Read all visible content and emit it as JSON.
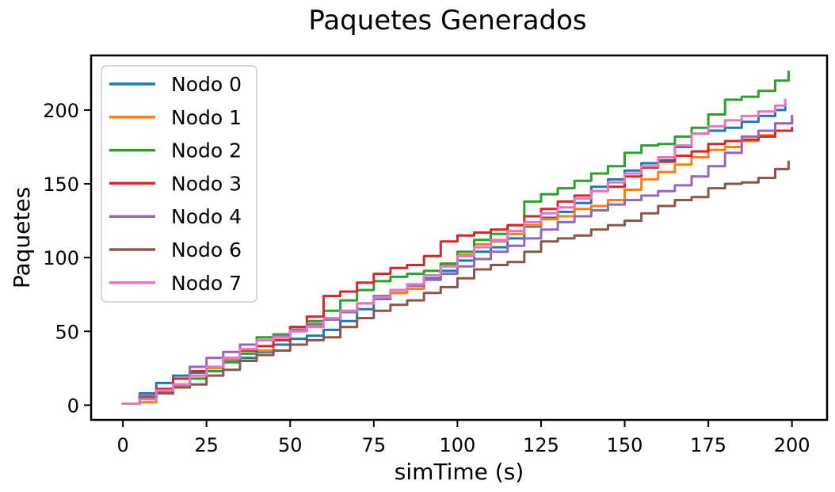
{
  "chart_data": {
    "type": "line",
    "title": "Paquetes Generados",
    "xlabel": "simTime (s)",
    "ylabel": "Paquetes",
    "xlim": [
      -9.5,
      210.5
    ],
    "ylim": [
      -10,
      237
    ],
    "xticks": [
      0,
      25,
      50,
      75,
      100,
      125,
      150,
      175,
      200
    ],
    "yticks": [
      0,
      50,
      100,
      150,
      200
    ],
    "grid": false,
    "legend_position": "upper-left",
    "series": [
      {
        "name": "Nodo 0",
        "color": "#1f77b4",
        "x": [
          0,
          5,
          10,
          15,
          20,
          25,
          30,
          35,
          40,
          45,
          50,
          55,
          60,
          65,
          70,
          75,
          80,
          85,
          90,
          95,
          100,
          105,
          110,
          115,
          120,
          125,
          130,
          135,
          140,
          145,
          150,
          155,
          160,
          165,
          170,
          175,
          180,
          185,
          190,
          195,
          198
        ],
        "y": [
          1,
          8,
          15,
          20,
          22,
          26,
          30,
          32,
          36,
          41,
          45,
          47,
          51,
          57,
          65,
          72,
          76,
          79,
          86,
          91,
          98,
          104,
          107,
          113,
          121,
          127,
          131,
          137,
          148,
          153,
          159,
          164,
          166,
          175,
          184,
          186,
          188,
          192,
          196,
          200,
          205
        ]
      },
      {
        "name": "Nodo 1",
        "color": "#ff7f0e",
        "x": [
          0,
          5,
          10,
          15,
          20,
          25,
          30,
          35,
          40,
          45,
          50,
          55,
          60,
          65,
          70,
          75,
          80,
          85,
          90,
          95,
          100,
          105,
          110,
          115,
          120,
          125,
          130,
          135,
          140,
          145,
          150,
          155,
          160,
          165,
          170,
          175,
          180,
          185,
          190,
          195,
          200
        ],
        "y": [
          1,
          2,
          9,
          13,
          20,
          25,
          31,
          35,
          37,
          44,
          51,
          54,
          58,
          63,
          69,
          74,
          76,
          79,
          85,
          95,
          102,
          109,
          111,
          116,
          122,
          126,
          128,
          133,
          135,
          139,
          146,
          153,
          158,
          163,
          168,
          173,
          175,
          179,
          183,
          191,
          196
        ]
      },
      {
        "name": "Nodo 2",
        "color": "#2ca02c",
        "x": [
          0,
          5,
          10,
          15,
          20,
          25,
          30,
          35,
          40,
          45,
          50,
          55,
          60,
          65,
          70,
          75,
          80,
          85,
          90,
          95,
          100,
          105,
          110,
          115,
          120,
          125,
          130,
          135,
          140,
          145,
          150,
          155,
          160,
          165,
          170,
          175,
          180,
          185,
          190,
          195,
          199
        ],
        "y": [
          1,
          6,
          9,
          12,
          18,
          23,
          29,
          35,
          46,
          48,
          53,
          57,
          64,
          71,
          78,
          84,
          87,
          89,
          91,
          96,
          104,
          112,
          116,
          122,
          138,
          143,
          147,
          152,
          157,
          162,
          171,
          176,
          177,
          182,
          188,
          197,
          207,
          209,
          213,
          220,
          226
        ]
      },
      {
        "name": "Nodo 3",
        "color": "#d62728",
        "x": [
          0,
          5,
          10,
          15,
          20,
          25,
          30,
          35,
          40,
          45,
          50,
          55,
          60,
          65,
          70,
          75,
          80,
          85,
          90,
          95,
          100,
          105,
          110,
          115,
          120,
          125,
          130,
          135,
          140,
          145,
          150,
          155,
          160,
          165,
          170,
          175,
          180,
          185,
          190,
          195,
          200
        ],
        "y": [
          1,
          5,
          11,
          18,
          23,
          26,
          32,
          37,
          40,
          44,
          53,
          60,
          74,
          77,
          83,
          89,
          93,
          95,
          101,
          111,
          115,
          117,
          119,
          122,
          128,
          133,
          138,
          142,
          145,
          148,
          155,
          161,
          165,
          169,
          172,
          177,
          179,
          180,
          182,
          186,
          188
        ]
      },
      {
        "name": "Nodo 4",
        "color": "#9467bd",
        "x": [
          0,
          5,
          10,
          15,
          20,
          25,
          30,
          35,
          40,
          45,
          50,
          55,
          60,
          65,
          70,
          75,
          80,
          85,
          90,
          95,
          100,
          105,
          110,
          115,
          120,
          125,
          130,
          135,
          140,
          145,
          150,
          155,
          160,
          165,
          170,
          175,
          180,
          185,
          190,
          195,
          200
        ],
        "y": [
          1,
          7,
          10,
          14,
          26,
          32,
          36,
          41,
          44,
          47,
          51,
          55,
          58,
          63,
          69,
          74,
          78,
          81,
          85,
          89,
          94,
          99,
          104,
          108,
          113,
          119,
          124,
          128,
          132,
          136,
          139,
          142,
          145,
          149,
          155,
          162,
          171,
          182,
          186,
          191,
          196
        ]
      },
      {
        "name": "Nodo 6",
        "color": "#8c564b",
        "x": [
          0,
          5,
          10,
          15,
          20,
          25,
          30,
          35,
          40,
          45,
          50,
          55,
          60,
          65,
          70,
          75,
          80,
          85,
          90,
          95,
          100,
          105,
          110,
          115,
          120,
          125,
          130,
          135,
          140,
          145,
          150,
          155,
          160,
          165,
          170,
          175,
          180,
          185,
          190,
          195,
          199
        ],
        "y": [
          1,
          5,
          8,
          12,
          14,
          20,
          24,
          30,
          34,
          37,
          41,
          44,
          46,
          53,
          59,
          64,
          68,
          71,
          76,
          80,
          86,
          92,
          95,
          97,
          104,
          111,
          113,
          115,
          119,
          122,
          125,
          130,
          135,
          139,
          141,
          147,
          150,
          151,
          154,
          160,
          165
        ]
      },
      {
        "name": "Nodo 7",
        "color": "#e377c2",
        "x": [
          0,
          5,
          10,
          15,
          20,
          25,
          30,
          35,
          40,
          45,
          50,
          55,
          60,
          65,
          70,
          75,
          80,
          85,
          90,
          95,
          100,
          105,
          110,
          115,
          120,
          125,
          130,
          135,
          140,
          145,
          150,
          155,
          160,
          165,
          170,
          175,
          180,
          185,
          190,
          195,
          198
        ],
        "y": [
          1,
          4,
          10,
          14,
          20,
          26,
          32,
          38,
          44,
          46,
          50,
          53,
          59,
          64,
          69,
          73,
          78,
          82,
          88,
          94,
          101,
          107,
          112,
          118,
          124,
          130,
          134,
          140,
          145,
          151,
          157,
          162,
          168,
          176,
          184,
          189,
          193,
          196,
          199,
          203,
          207
        ]
      }
    ]
  }
}
